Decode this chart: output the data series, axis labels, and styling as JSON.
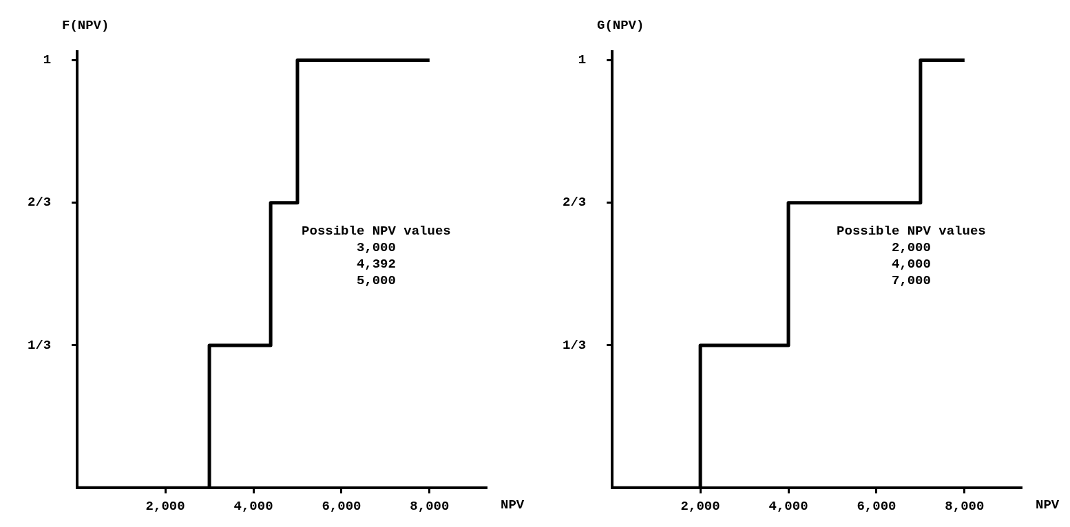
{
  "chart_data": [
    {
      "type": "step",
      "x": [
        0,
        3000,
        4392,
        5000,
        8000
      ],
      "values": [
        0,
        0.3333,
        0.6667,
        1,
        1
      ],
      "color": "#000000",
      "xlim": [
        0,
        9300
      ],
      "xticks": [
        {
          "value": 2000,
          "label": "2,000"
        },
        {
          "value": 4000,
          "label": "4,000"
        },
        {
          "value": 6000,
          "label": "6,000"
        },
        {
          "value": 8000,
          "label": "8,000"
        }
      ],
      "ylim": [
        0,
        1.02
      ],
      "yticks": [
        {
          "value": 0.3333,
          "label": "1/3"
        },
        {
          "value": 0.6667,
          "label": "2/3"
        },
        {
          "value": 1,
          "label": "1"
        }
      ],
      "xlabel": "NPV",
      "ylabel": "F(NPV)",
      "annotations": [
        "Possible NPV values",
        "3,000",
        "4,392",
        "5,000"
      ]
    },
    {
      "type": "step",
      "x": [
        0,
        2000,
        4000,
        7000,
        8000
      ],
      "values": [
        0,
        0.3333,
        0.6667,
        1,
        1
      ],
      "color": "#000000",
      "xlim": [
        0,
        9300
      ],
      "xticks": [
        {
          "value": 2000,
          "label": "2,000"
        },
        {
          "value": 4000,
          "label": "4,000"
        },
        {
          "value": 6000,
          "label": "6,000"
        },
        {
          "value": 8000,
          "label": "8,000"
        }
      ],
      "ylim": [
        0,
        1.02
      ],
      "yticks": [
        {
          "value": 0.3333,
          "label": "1/3"
        },
        {
          "value": 0.6667,
          "label": "2/3"
        },
        {
          "value": 1,
          "label": "1"
        }
      ],
      "xlabel": "NPV",
      "ylabel": "G(NPV)",
      "annotations": [
        "Possible NPV values",
        "2,000",
        "4,000",
        "7,000"
      ]
    }
  ]
}
